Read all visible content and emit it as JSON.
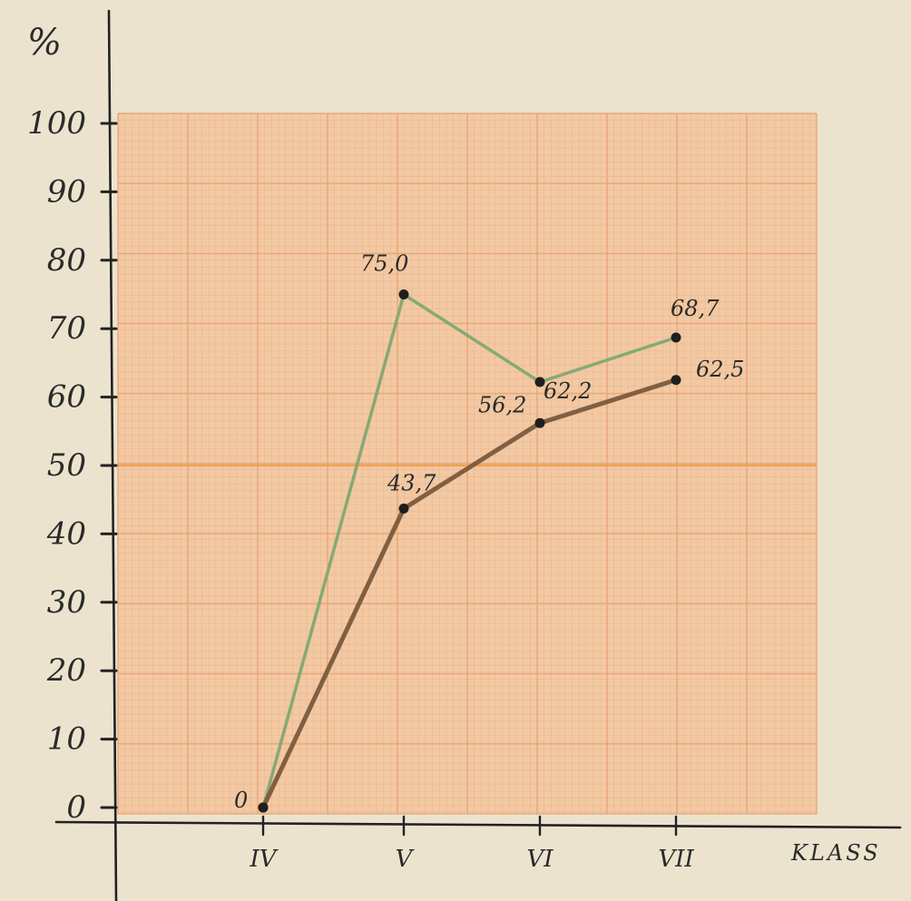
{
  "chart_data": {
    "type": "line",
    "ylabel": "%",
    "xlabel": "KLASS",
    "categories": [
      "IV",
      "V",
      "VI",
      "VII"
    ],
    "ylim": [
      0,
      100
    ],
    "yticks": [
      "0",
      "10",
      "20",
      "30",
      "40",
      "50",
      "60",
      "70",
      "80",
      "90",
      "100"
    ],
    "grid": true,
    "series": [
      {
        "color": "#7fa873",
        "values": [
          0,
          75.0,
          62.2,
          68.7
        ],
        "labels": [
          "0",
          "75,0",
          "62,2",
          "68,7"
        ]
      },
      {
        "color": "#7a5a3c",
        "values": [
          0,
          43.7,
          56.2,
          62.5
        ],
        "labels": [
          "",
          "43,7",
          "56,2",
          "62,5"
        ]
      }
    ]
  },
  "colors": {
    "paper": "#ece3cf",
    "grid_bg": "#f2c9a3",
    "grid_fine": "#e7a982",
    "grid_major": "#e8a06e",
    "fifty_line": "#f0a050",
    "axis": "#222222"
  }
}
